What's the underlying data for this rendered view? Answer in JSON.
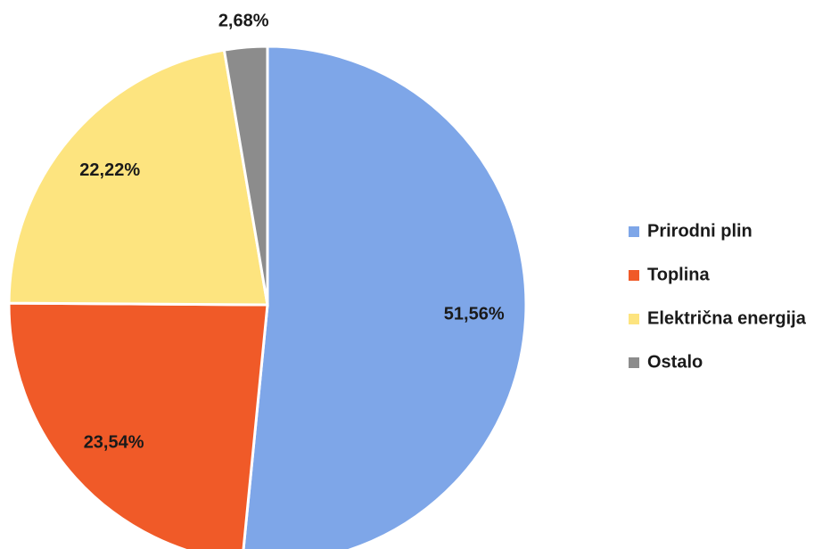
{
  "chart_data": {
    "type": "pie",
    "categories": [
      "Prirodni plin",
      "Toplina",
      "Električna energija",
      "Ostalo"
    ],
    "values": [
      51.56,
      23.54,
      22.22,
      2.68
    ],
    "value_labels": [
      "51,56%",
      "23,54%",
      "22,22%",
      "2,68%"
    ],
    "colors": [
      "#7ea6e8",
      "#f05a28",
      "#fde47f",
      "#8c8c8c"
    ],
    "legend": "right"
  }
}
